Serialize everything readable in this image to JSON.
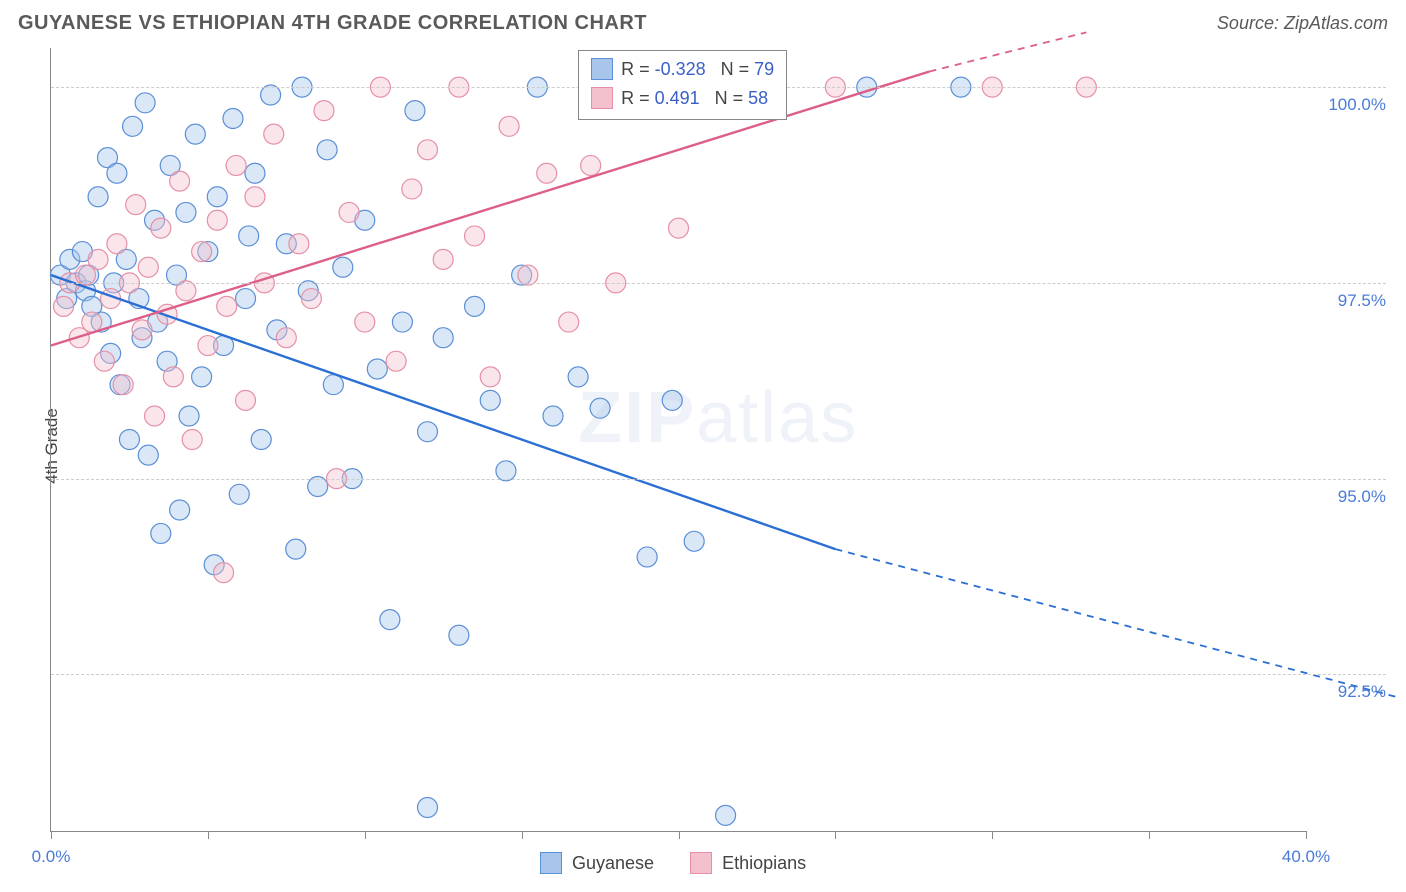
{
  "header": {
    "title": "GUYANESE VS ETHIOPIAN 4TH GRADE CORRELATION CHART",
    "source_prefix": "Source: ",
    "source_name": "ZipAtlas.com"
  },
  "chart": {
    "type": "scatter",
    "ylabel": "4th Grade",
    "background_color": "#ffffff",
    "grid_color": "#cccccc",
    "axis_color": "#888888",
    "text_color": "#5a5a5a",
    "tick_label_color": "#4a7bd8",
    "xlim": [
      0,
      40
    ],
    "ylim": [
      90.5,
      100.5
    ],
    "xticks": [
      0,
      5,
      10,
      15,
      20,
      25,
      30,
      35,
      40
    ],
    "xtick_labels": {
      "0": "0.0%",
      "40": "40.0%"
    },
    "yticks": [
      92.5,
      95.0,
      97.5,
      100.0
    ],
    "ytick_labels": [
      "92.5%",
      "95.0%",
      "97.5%",
      "100.0%"
    ],
    "marker_radius": 10,
    "marker_opacity": 0.42,
    "line_width": 2.4,
    "watermark": "ZIPatlas",
    "series": [
      {
        "name": "Guyanese",
        "color_fill": "#a8c5ec",
        "color_stroke": "#5b8fd6",
        "line_color": "#2b6fd4",
        "R": -0.328,
        "N": 79,
        "trend": {
          "x1": 0,
          "y1": 97.6,
          "x2": 25,
          "y2": 94.1,
          "dash_after_x": 25,
          "x3": 43,
          "y3": 92.2
        },
        "points": [
          [
            0.3,
            97.6
          ],
          [
            0.5,
            97.3
          ],
          [
            0.6,
            97.8
          ],
          [
            0.8,
            97.5
          ],
          [
            1.0,
            97.9
          ],
          [
            1.1,
            97.4
          ],
          [
            1.2,
            97.6
          ],
          [
            1.3,
            97.2
          ],
          [
            1.5,
            98.6
          ],
          [
            1.6,
            97.0
          ],
          [
            1.8,
            99.1
          ],
          [
            1.9,
            96.6
          ],
          [
            2.0,
            97.5
          ],
          [
            2.1,
            98.9
          ],
          [
            2.2,
            96.2
          ],
          [
            2.4,
            97.8
          ],
          [
            2.5,
            95.5
          ],
          [
            2.6,
            99.5
          ],
          [
            2.8,
            97.3
          ],
          [
            2.9,
            96.8
          ],
          [
            3.0,
            99.8
          ],
          [
            3.1,
            95.3
          ],
          [
            3.3,
            98.3
          ],
          [
            3.4,
            97.0
          ],
          [
            3.5,
            94.3
          ],
          [
            3.7,
            96.5
          ],
          [
            3.8,
            99.0
          ],
          [
            4.0,
            97.6
          ],
          [
            4.1,
            94.6
          ],
          [
            4.3,
            98.4
          ],
          [
            4.4,
            95.8
          ],
          [
            4.6,
            99.4
          ],
          [
            4.8,
            96.3
          ],
          [
            5.0,
            97.9
          ],
          [
            5.2,
            93.9
          ],
          [
            5.3,
            98.6
          ],
          [
            5.5,
            96.7
          ],
          [
            5.8,
            99.6
          ],
          [
            6.0,
            94.8
          ],
          [
            6.2,
            97.3
          ],
          [
            6.5,
            98.9
          ],
          [
            6.7,
            95.5
          ],
          [
            7.0,
            99.9
          ],
          [
            7.2,
            96.9
          ],
          [
            7.5,
            98.0
          ],
          [
            7.8,
            94.1
          ],
          [
            8.0,
            100.0
          ],
          [
            8.2,
            97.4
          ],
          [
            8.5,
            94.9
          ],
          [
            8.8,
            99.2
          ],
          [
            9.0,
            96.2
          ],
          [
            9.3,
            97.7
          ],
          [
            9.6,
            95.0
          ],
          [
            10.0,
            98.3
          ],
          [
            10.4,
            96.4
          ],
          [
            10.8,
            93.2
          ],
          [
            11.2,
            97.0
          ],
          [
            11.6,
            99.7
          ],
          [
            12.0,
            95.6
          ],
          [
            12.5,
            96.8
          ],
          [
            13.0,
            93.0
          ],
          [
            13.5,
            97.2
          ],
          [
            14.0,
            96.0
          ],
          [
            14.5,
            95.1
          ],
          [
            15.0,
            97.6
          ],
          [
            15.5,
            100.0
          ],
          [
            16.0,
            95.8
          ],
          [
            16.8,
            96.3
          ],
          [
            17.5,
            95.9
          ],
          [
            18.3,
            100.0
          ],
          [
            19.0,
            94.0
          ],
          [
            19.8,
            96.0
          ],
          [
            20.5,
            94.2
          ],
          [
            21.5,
            90.7
          ],
          [
            22.5,
            100.0
          ],
          [
            26.0,
            100.0
          ],
          [
            29.0,
            100.0
          ],
          [
            12.0,
            90.8
          ],
          [
            6.3,
            98.1
          ]
        ]
      },
      {
        "name": "Ethiopians",
        "color_fill": "#f3c1cd",
        "color_stroke": "#e590a6",
        "line_color": "#dd5f87",
        "R": 0.491,
        "N": 58,
        "trend": {
          "x1": 0,
          "y1": 96.7,
          "x2": 28,
          "y2": 100.2,
          "dash_after_x": 28,
          "x3": 33,
          "y3": 100.7
        },
        "points": [
          [
            0.4,
            97.2
          ],
          [
            0.6,
            97.5
          ],
          [
            0.9,
            96.8
          ],
          [
            1.1,
            97.6
          ],
          [
            1.3,
            97.0
          ],
          [
            1.5,
            97.8
          ],
          [
            1.7,
            96.5
          ],
          [
            1.9,
            97.3
          ],
          [
            2.1,
            98.0
          ],
          [
            2.3,
            96.2
          ],
          [
            2.5,
            97.5
          ],
          [
            2.7,
            98.5
          ],
          [
            2.9,
            96.9
          ],
          [
            3.1,
            97.7
          ],
          [
            3.3,
            95.8
          ],
          [
            3.5,
            98.2
          ],
          [
            3.7,
            97.1
          ],
          [
            3.9,
            96.3
          ],
          [
            4.1,
            98.8
          ],
          [
            4.3,
            97.4
          ],
          [
            4.5,
            95.5
          ],
          [
            4.8,
            97.9
          ],
          [
            5.0,
            96.7
          ],
          [
            5.3,
            98.3
          ],
          [
            5.6,
            97.2
          ],
          [
            5.9,
            99.0
          ],
          [
            6.2,
            96.0
          ],
          [
            6.5,
            98.6
          ],
          [
            6.8,
            97.5
          ],
          [
            7.1,
            99.4
          ],
          [
            7.5,
            96.8
          ],
          [
            7.9,
            98.0
          ],
          [
            8.3,
            97.3
          ],
          [
            8.7,
            99.7
          ],
          [
            9.1,
            95.0
          ],
          [
            9.5,
            98.4
          ],
          [
            10.0,
            97.0
          ],
          [
            10.5,
            100.0
          ],
          [
            11.0,
            96.5
          ],
          [
            11.5,
            98.7
          ],
          [
            12.0,
            99.2
          ],
          [
            12.5,
            97.8
          ],
          [
            13.0,
            100.0
          ],
          [
            13.5,
            98.1
          ],
          [
            14.0,
            96.3
          ],
          [
            14.6,
            99.5
          ],
          [
            15.2,
            97.6
          ],
          [
            15.8,
            98.9
          ],
          [
            16.5,
            97.0
          ],
          [
            17.2,
            99.0
          ],
          [
            18.0,
            97.5
          ],
          [
            19.0,
            100.0
          ],
          [
            20.0,
            98.2
          ],
          [
            22.0,
            100.0
          ],
          [
            25.0,
            100.0
          ],
          [
            30.0,
            100.0
          ],
          [
            33.0,
            100.0
          ],
          [
            5.5,
            93.8
          ]
        ]
      }
    ],
    "legend_bottom": [
      {
        "label": "Guyanese",
        "fill": "#a8c5ec",
        "stroke": "#5b8fd6"
      },
      {
        "label": "Ethiopians",
        "fill": "#f3c1cd",
        "stroke": "#e590a6"
      }
    ],
    "stats_box": {
      "R_prefix": "R =",
      "N_prefix": "N =",
      "R_color_neg": "#3a5fc8",
      "R_color_pos": "#3a5fc8",
      "label_color": "#444444"
    }
  }
}
